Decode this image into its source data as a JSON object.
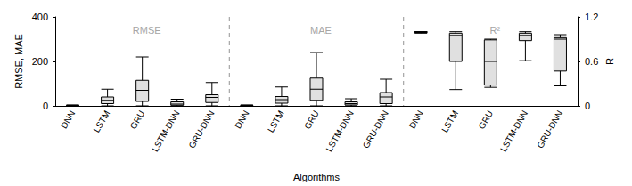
{
  "chart_data": {
    "type": "boxplot",
    "xlabel": "Algorithms",
    "ylabel": "RMSE, MAE",
    "y2label": "R",
    "categories": [
      "DNN",
      "LSTM",
      "GRU",
      "LSTM-DNN",
      "GRU-DNN"
    ],
    "color": "#e0e0e0",
    "ylim": [
      0,
      400
    ],
    "yticks": [
      0,
      200,
      400
    ],
    "y2lim": [
      0,
      1.2
    ],
    "y2ticks": [
      0,
      0.6,
      1.2
    ],
    "grid": false,
    "series": [
      {
        "name": "RMSE",
        "axis": "y",
        "values": [
          [
            0,
            1,
            2,
            3,
            4
          ],
          [
            0,
            10,
            25,
            40,
            75
          ],
          [
            0,
            20,
            70,
            115,
            220
          ],
          [
            0,
            3,
            8,
            18,
            30
          ],
          [
            0,
            15,
            38,
            50,
            105
          ]
        ]
      },
      {
        "name": "MAE",
        "axis": "y",
        "values": [
          [
            0,
            1,
            2,
            3,
            4
          ],
          [
            0,
            12,
            28,
            42,
            85
          ],
          [
            0,
            25,
            75,
            125,
            240
          ],
          [
            0,
            4,
            10,
            18,
            32
          ],
          [
            0,
            10,
            40,
            60,
            120
          ]
        ]
      },
      {
        "name": "R²",
        "axis": "y2",
        "values": [
          [
            0.98,
            0.99,
            0.995,
            1.0,
            1.0
          ],
          [
            0.22,
            0.6,
            0.95,
            0.98,
            1.0
          ],
          [
            0.25,
            0.28,
            0.6,
            0.89,
            0.9
          ],
          [
            0.61,
            0.88,
            0.95,
            0.98,
            1.0
          ],
          [
            0.27,
            0.47,
            0.9,
            0.92,
            0.96
          ]
        ]
      }
    ]
  }
}
